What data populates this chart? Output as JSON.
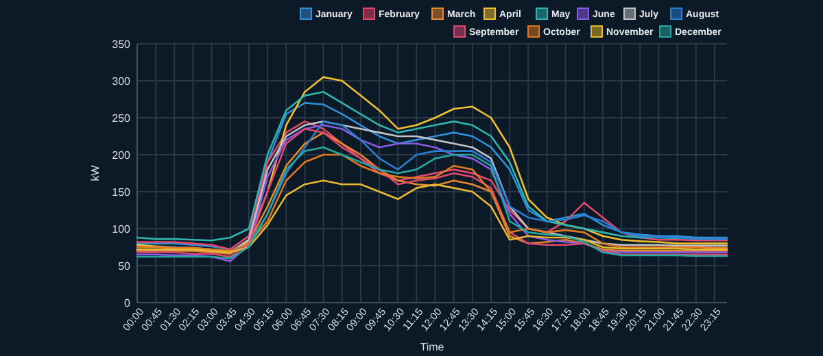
{
  "chart_data": {
    "type": "line",
    "xlabel": "Time",
    "ylabel": "kW",
    "legend": "top right",
    "grid": true,
    "marker": "none",
    "line_style": "solid",
    "x": [
      0,
      0.75,
      1.5,
      2.25,
      3,
      3.75,
      4.5,
      5.25,
      6,
      6.75,
      7.5,
      8.25,
      9,
      9.75,
      10.5,
      11.25,
      12,
      12.75,
      13.5,
      14.25,
      15,
      15.75,
      16.5,
      17.25,
      18,
      18.75,
      19.5,
      20.25,
      21,
      21.75,
      22.5,
      23.25,
      23.75
    ],
    "xlim": [
      0,
      23.75
    ],
    "xticks": [
      {
        "value": 0,
        "label": "00:00"
      },
      {
        "value": 0.75,
        "label": "00:45"
      },
      {
        "value": 1.5,
        "label": "01:30"
      },
      {
        "value": 2.25,
        "label": "02:15"
      },
      {
        "value": 3,
        "label": "03:00"
      },
      {
        "value": 3.75,
        "label": "03:45"
      },
      {
        "value": 4.5,
        "label": "04:30"
      },
      {
        "value": 5.25,
        "label": "05:15"
      },
      {
        "value": 6,
        "label": "06:00"
      },
      {
        "value": 6.75,
        "label": "06:45"
      },
      {
        "value": 7.5,
        "label": "07:30"
      },
      {
        "value": 8.25,
        "label": "08:15"
      },
      {
        "value": 9,
        "label": "09:00"
      },
      {
        "value": 9.75,
        "label": "09:45"
      },
      {
        "value": 10.5,
        "label": "10:30"
      },
      {
        "value": 11.25,
        "label": "11:15"
      },
      {
        "value": 12,
        "label": "12:00"
      },
      {
        "value": 12.75,
        "label": "12:45"
      },
      {
        "value": 13.5,
        "label": "13:30"
      },
      {
        "value": 14.25,
        "label": "14:15"
      },
      {
        "value": 15,
        "label": "15:00"
      },
      {
        "value": 15.75,
        "label": "15:45"
      },
      {
        "value": 16.5,
        "label": "16:30"
      },
      {
        "value": 17.25,
        "label": "17:15"
      },
      {
        "value": 18,
        "label": "18:00"
      },
      {
        "value": 18.75,
        "label": "18:45"
      },
      {
        "value": 19.5,
        "label": "19:30"
      },
      {
        "value": 20.25,
        "label": "20:15"
      },
      {
        "value": 21,
        "label": "21:00"
      },
      {
        "value": 21.75,
        "label": "21:45"
      },
      {
        "value": 22.5,
        "label": "22:30"
      },
      {
        "value": 23.25,
        "label": "23:15"
      }
    ],
    "ylim": [
      0,
      350
    ],
    "yticks": [
      0,
      50,
      100,
      150,
      200,
      250,
      300,
      350
    ],
    "series": [
      {
        "name": "January",
        "color": "#2f8fd8",
        "values": [
          80,
          80,
          80,
          78,
          76,
          72,
          90,
          190,
          255,
          270,
          268,
          255,
          240,
          225,
          215,
          220,
          225,
          230,
          225,
          210,
          180,
          125,
          110,
          115,
          120,
          105,
          95,
          92,
          90,
          90,
          88,
          88,
          88
        ]
      },
      {
        "name": "February",
        "color": "#e5486b",
        "values": [
          82,
          82,
          82,
          80,
          78,
          72,
          90,
          190,
          230,
          245,
          235,
          215,
          195,
          175,
          165,
          170,
          175,
          180,
          175,
          165,
          125,
          100,
          95,
          110,
          135,
          115,
          95,
          88,
          85,
          85,
          84,
          84,
          84
        ]
      },
      {
        "name": "March",
        "color": "#e8892c",
        "values": [
          70,
          70,
          70,
          70,
          68,
          66,
          82,
          130,
          185,
          215,
          230,
          215,
          200,
          180,
          165,
          160,
          158,
          165,
          160,
          150,
          90,
          80,
          82,
          85,
          80,
          72,
          70,
          70,
          70,
          70,
          70,
          70,
          70
        ]
      },
      {
        "name": "April",
        "color": "#f0c030",
        "values": [
          78,
          76,
          75,
          74,
          72,
          68,
          85,
          150,
          240,
          285,
          305,
          300,
          280,
          260,
          235,
          240,
          250,
          262,
          265,
          250,
          210,
          140,
          115,
          105,
          100,
          90,
          85,
          83,
          82,
          80,
          80,
          80,
          80
        ]
      },
      {
        "name": "May",
        "color": "#2fb5b0",
        "values": [
          88,
          86,
          86,
          85,
          84,
          88,
          100,
          200,
          260,
          280,
          285,
          270,
          255,
          240,
          230,
          235,
          240,
          245,
          240,
          225,
          190,
          130,
          110,
          105,
          100,
          95,
          90,
          88,
          88,
          87,
          87,
          86,
          86
        ]
      },
      {
        "name": "June",
        "color": "#8a5ce6",
        "values": [
          65,
          65,
          64,
          64,
          62,
          56,
          78,
          170,
          220,
          235,
          240,
          235,
          220,
          210,
          215,
          215,
          210,
          200,
          195,
          180,
          120,
          90,
          85,
          82,
          80,
          70,
          68,
          68,
          68,
          68,
          68,
          68,
          68
        ]
      },
      {
        "name": "July",
        "color": "#c0c4c8",
        "values": [
          72,
          72,
          72,
          72,
          70,
          68,
          85,
          180,
          225,
          240,
          245,
          240,
          235,
          230,
          225,
          225,
          220,
          215,
          210,
          195,
          130,
          100,
          95,
          90,
          85,
          80,
          78,
          78,
          78,
          77,
          77,
          77,
          77
        ]
      },
      {
        "name": "August",
        "color": "#2a7fd0",
        "values": [
          75,
          75,
          75,
          74,
          72,
          68,
          80,
          120,
          175,
          210,
          245,
          240,
          220,
          195,
          180,
          200,
          205,
          205,
          205,
          190,
          130,
          115,
          110,
          112,
          118,
          110,
          95,
          90,
          88,
          88,
          86,
          86,
          86
        ]
      },
      {
        "name": "September",
        "color": "#e04870",
        "values": [
          68,
          68,
          68,
          66,
          66,
          62,
          80,
          150,
          215,
          235,
          230,
          210,
          195,
          180,
          160,
          165,
          168,
          175,
          170,
          155,
          95,
          80,
          78,
          78,
          80,
          70,
          65,
          65,
          65,
          65,
          65,
          65,
          65
        ]
      },
      {
        "name": "October",
        "color": "#e07a20",
        "values": [
          75,
          75,
          74,
          74,
          72,
          70,
          80,
          110,
          165,
          190,
          200,
          200,
          185,
          175,
          170,
          168,
          170,
          185,
          180,
          150,
          95,
          100,
          95,
          98,
          95,
          80,
          75,
          75,
          75,
          75,
          75,
          74,
          74
        ]
      },
      {
        "name": "November",
        "color": "#e8b830",
        "values": [
          72,
          72,
          72,
          72,
          70,
          68,
          75,
          105,
          145,
          160,
          165,
          160,
          160,
          150,
          140,
          155,
          160,
          155,
          150,
          130,
          85,
          90,
          88,
          88,
          85,
          75,
          73,
          73,
          73,
          73,
          72,
          72,
          72
        ]
      },
      {
        "name": "December",
        "color": "#26a6a0",
        "values": [
          62,
          62,
          62,
          62,
          62,
          60,
          75,
          120,
          180,
          205,
          210,
          200,
          190,
          180,
          175,
          180,
          195,
          200,
          200,
          185,
          110,
          95,
          92,
          90,
          82,
          68,
          64,
          64,
          64,
          64,
          63,
          63,
          63
        ]
      }
    ]
  }
}
